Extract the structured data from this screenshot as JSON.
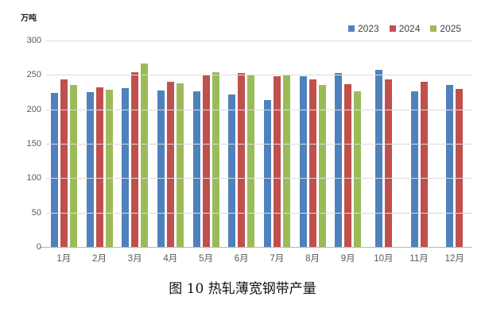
{
  "figure": {
    "unit_label": "万吨",
    "caption": "图 10  热轧薄宽钢带产量"
  },
  "chart_data": {
    "type": "bar",
    "title": "图 10 热轧薄宽钢带产量",
    "ylabel": "万吨",
    "xlabel": "",
    "ylim": [
      0,
      300
    ],
    "yticks": [
      300,
      250,
      200,
      150,
      100,
      50,
      0
    ],
    "grid": true,
    "legend_position": "top-right",
    "categories": [
      "1月",
      "2月",
      "3月",
      "4月",
      "5月",
      "6月",
      "7月",
      "8月",
      "9月",
      "10月",
      "11月",
      "12月"
    ],
    "series": [
      {
        "name": "2023",
        "color": "#4F81BD",
        "values": [
          224,
          225,
          231,
          227,
          226,
          222,
          214,
          248,
          253,
          257,
          226,
          235
        ]
      },
      {
        "name": "2024",
        "color": "#C0504D",
        "values": [
          244,
          232,
          254,
          240,
          251,
          253,
          248,
          244,
          237,
          244,
          240,
          230
        ]
      },
      {
        "name": "2025",
        "color": "#9BBB59",
        "values": [
          235,
          228,
          267,
          238,
          254,
          249,
          250,
          235,
          226,
          null,
          null,
          null
        ]
      }
    ]
  }
}
